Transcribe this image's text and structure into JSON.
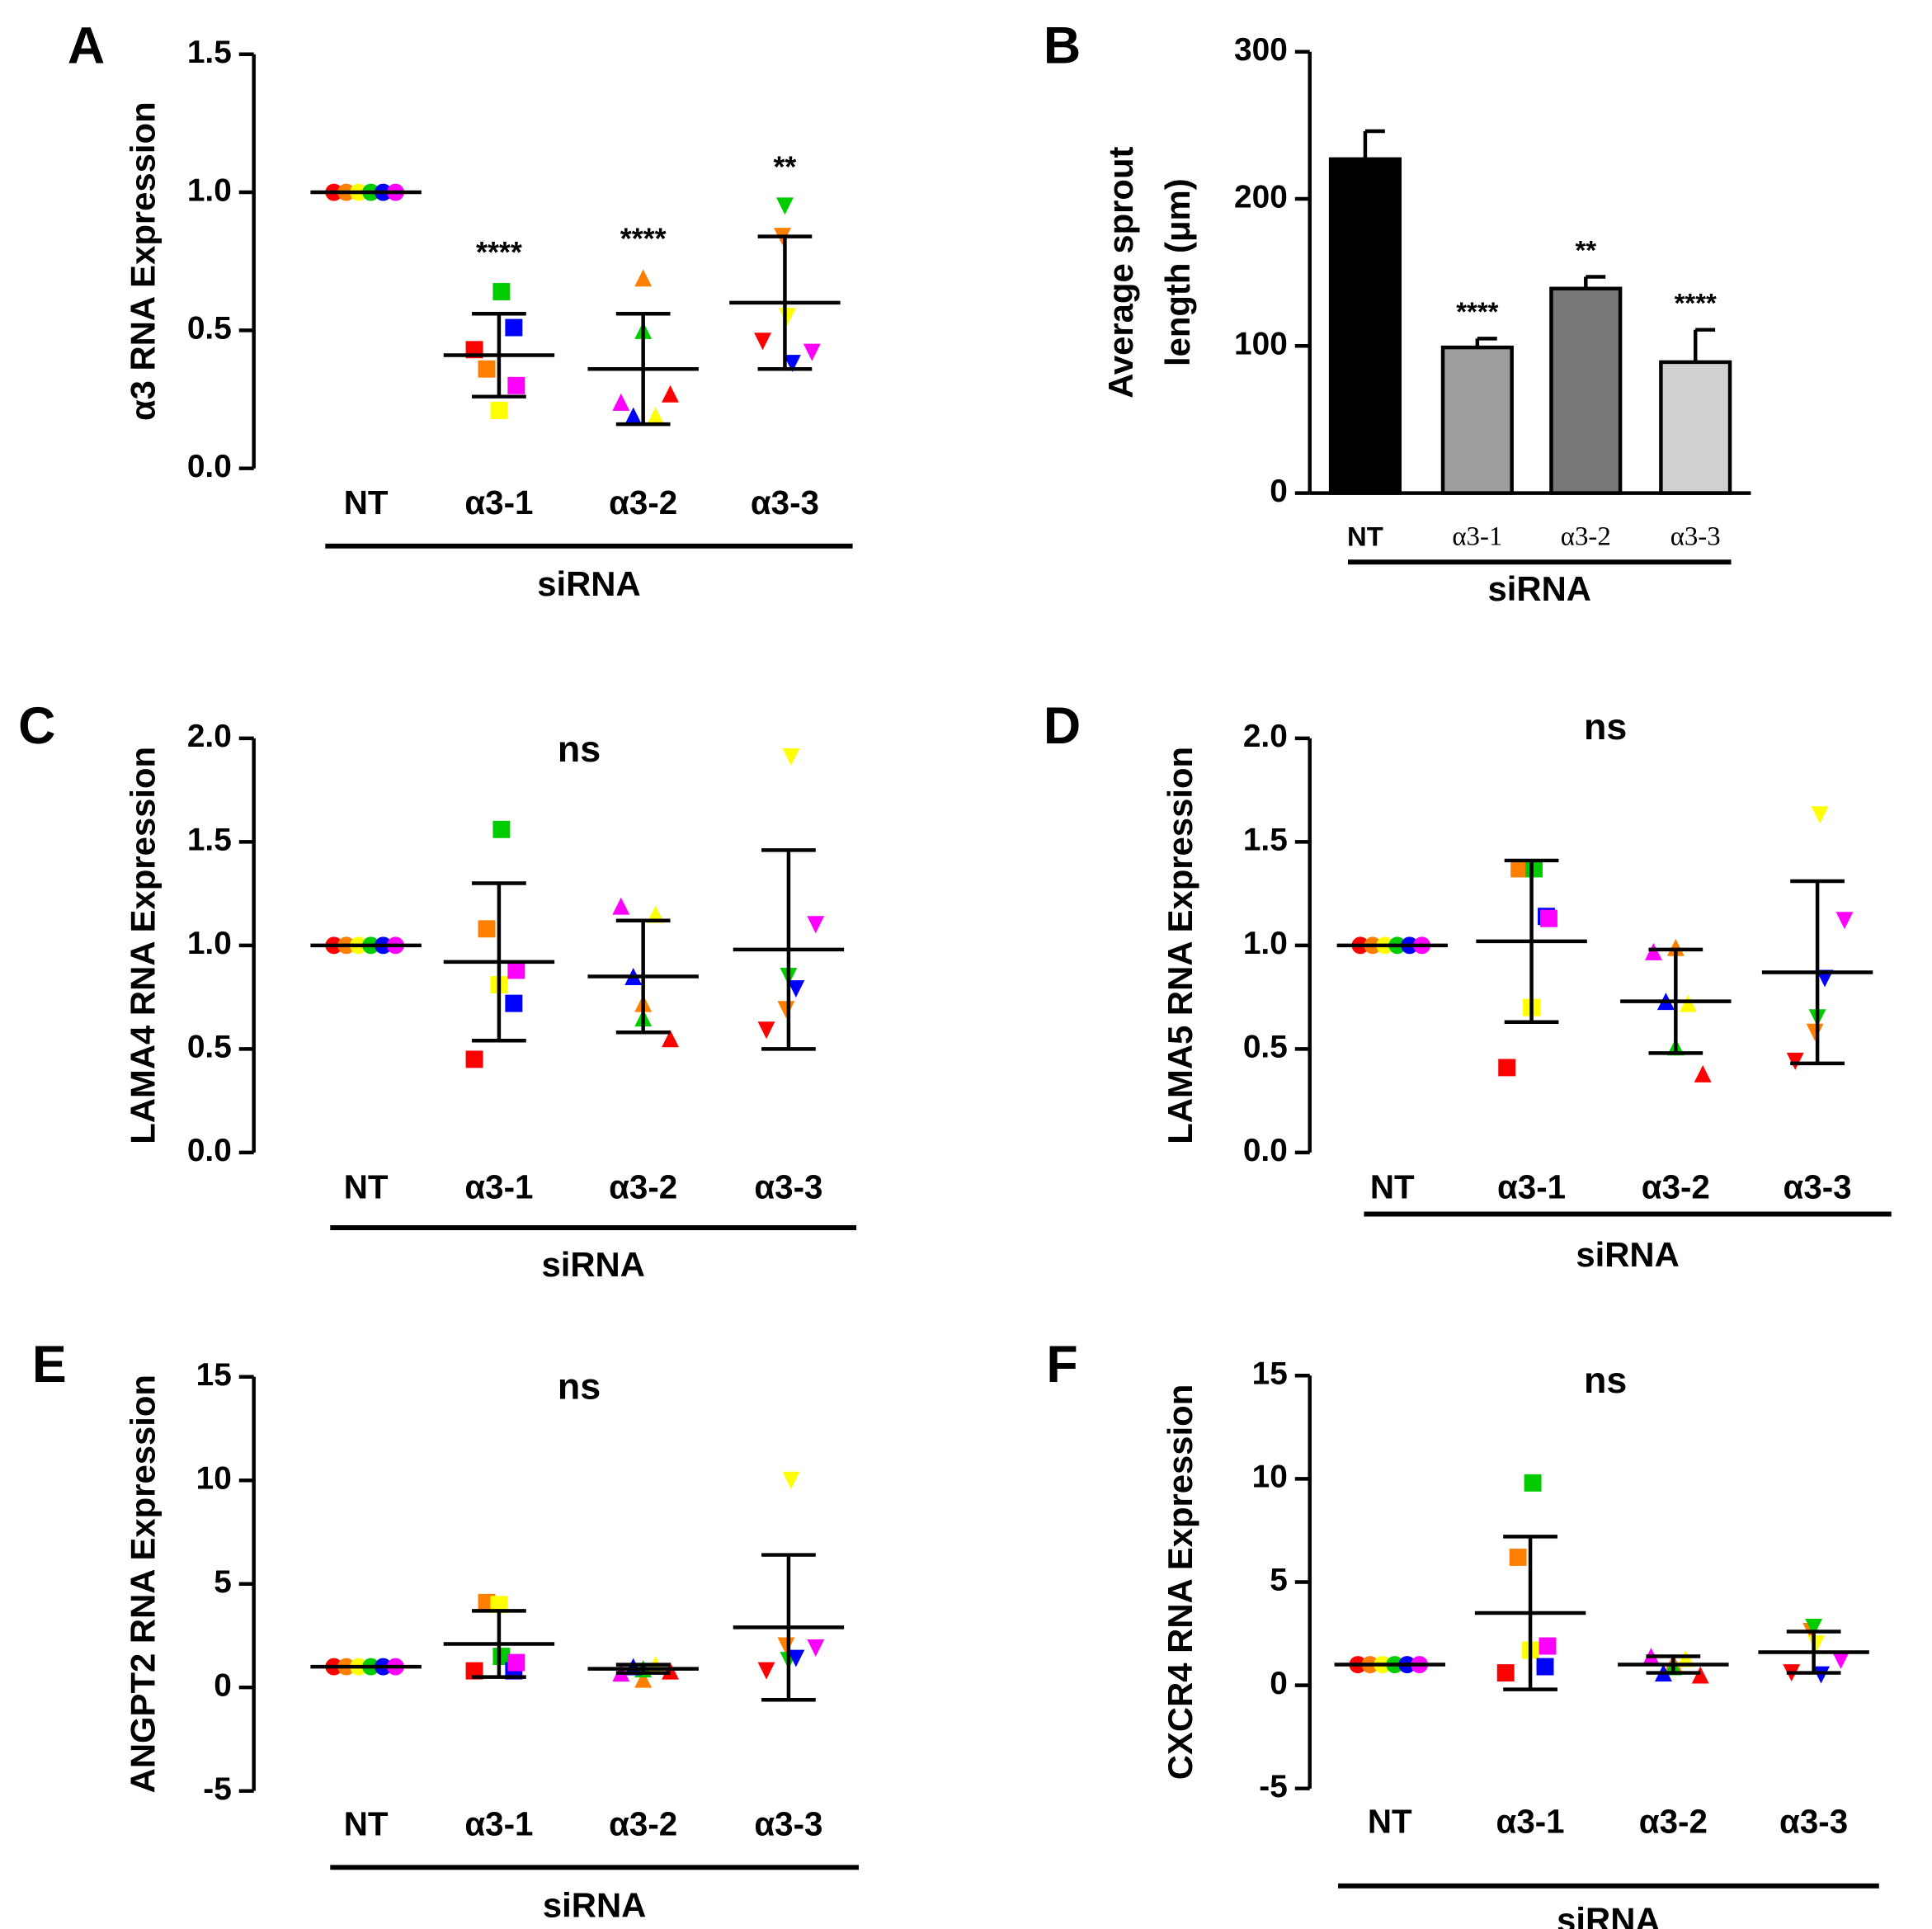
{
  "chart_data": [
    {
      "type": "dot",
      "panel": "A",
      "ylabel": [
        "α3 RNA Expression"
      ],
      "xlabel": "siRNA",
      "categories": [
        "NT",
        "α3-1",
        "α3-2",
        "α3-3"
      ],
      "markers": [
        "circle",
        "square",
        "triangle",
        "triangle-down"
      ],
      "ylim": [
        0,
        1.5
      ],
      "yticks": [
        {
          "value": 0,
          "label": "0.0"
        },
        0.5,
        {
          "value": 1,
          "label": "1.0"
        },
        1.5
      ],
      "annotations": [
        null,
        "****",
        "****",
        "**"
      ],
      "series": [
        {
          "color": "#ff0000",
          "values": [
            1,
            0.43,
            0.27,
            0.46
          ]
        },
        {
          "color": "#ff7f00",
          "values": [
            1,
            0.36,
            0.69,
            0.84
          ]
        },
        {
          "color": "#ffff00",
          "values": [
            1,
            0.21,
            0.19,
            0.55
          ]
        },
        {
          "color": "#00cc00",
          "values": [
            1,
            0.64,
            0.5,
            0.95
          ]
        },
        {
          "color": "#0000ff",
          "values": [
            1,
            0.51,
            0.19,
            0.38
          ]
        },
        {
          "color": "#ff00ff",
          "values": [
            1,
            0.3,
            0.24,
            0.42
          ]
        }
      ],
      "means": [
        1,
        0.41,
        0.36,
        0.6
      ],
      "errors": [
        0,
        0.15,
        0.2,
        0.24
      ]
    },
    {
      "type": "bar",
      "panel": "B",
      "ylabel": [
        "Average sprout",
        "length (μm)"
      ],
      "xlabel": "siRNA",
      "categories": [
        "NT",
        "α3-1",
        "α3-2",
        "α3-3"
      ],
      "colors": [
        "#000000",
        "#9e9e9e",
        "#777777",
        "#d0d0d0"
      ],
      "ylim": [
        0,
        300
      ],
      "yticks": [
        0,
        100,
        200,
        300
      ],
      "annotations": [
        null,
        "****",
        "**",
        "****"
      ],
      "values": [
        227,
        99,
        139,
        89
      ],
      "errors": [
        19,
        6,
        8,
        22
      ]
    },
    {
      "type": "dot",
      "panel": "C",
      "ylabel": [
        "LAMA4  RNA  Expression"
      ],
      "xlabel": "siRNA",
      "note": "ns",
      "categories": [
        "NT",
        "α3-1",
        "α3-2",
        "α3-3"
      ],
      "markers": [
        "circle",
        "square",
        "triangle",
        "triangle-down"
      ],
      "ylim": [
        0,
        2
      ],
      "yticks": [
        {
          "value": 0,
          "label": "0.0"
        },
        0.5,
        {
          "value": 1,
          "label": "1.0"
        },
        1.5,
        {
          "value": 2,
          "label": "2.0"
        }
      ],
      "series": [
        {
          "color": "#ff0000",
          "values": [
            1,
            0.45,
            0.55,
            0.59
          ]
        },
        {
          "color": "#ff7f00",
          "values": [
            1,
            1.08,
            0.72,
            0.69
          ]
        },
        {
          "color": "#ffff00",
          "values": [
            1,
            0.81,
            1.15,
            1.91
          ]
        },
        {
          "color": "#00cc00",
          "values": [
            1,
            1.56,
            0.65,
            0.85
          ]
        },
        {
          "color": "#0000ff",
          "values": [
            1,
            0.72,
            0.85,
            0.79
          ]
        },
        {
          "color": "#ff00ff",
          "values": [
            1,
            0.88,
            1.19,
            1.1
          ]
        }
      ],
      "means": [
        1,
        0.92,
        0.85,
        0.98
      ],
      "errors": [
        0,
        0.38,
        0.27,
        0.48
      ]
    },
    {
      "type": "dot",
      "panel": "D",
      "ylabel": [
        "LAMA5 RNA Expression"
      ],
      "xlabel": "siRNA",
      "note": "ns",
      "categories": [
        "NT",
        "α3-1",
        "α3-2",
        "α3-3"
      ],
      "markers": [
        "circle",
        "square",
        "triangle",
        "triangle-down"
      ],
      "ylim": [
        0,
        2
      ],
      "yticks": [
        {
          "value": 0,
          "label": "0.0"
        },
        0.5,
        {
          "value": 1,
          "label": "1.0"
        },
        1.5,
        {
          "value": 2,
          "label": "2.0"
        }
      ],
      "series": [
        {
          "color": "#ff0000",
          "values": [
            1,
            0.41,
            0.38,
            0.44
          ]
        },
        {
          "color": "#ff7f00",
          "values": [
            1,
            1.37,
            0.99,
            0.58
          ]
        },
        {
          "color": "#ffff00",
          "values": [
            1,
            0.7,
            0.72,
            1.63
          ]
        },
        {
          "color": "#00cc00",
          "values": [
            1,
            1.37,
            0.51,
            0.65
          ]
        },
        {
          "color": "#0000ff",
          "values": [
            1,
            1.14,
            0.73,
            0.84
          ]
        },
        {
          "color": "#ff00ff",
          "values": [
            1,
            1.13,
            0.97,
            1.12
          ]
        }
      ],
      "means": [
        1,
        1.02,
        0.73,
        0.87
      ],
      "errors": [
        0,
        0.39,
        0.25,
        0.44
      ]
    },
    {
      "type": "dot",
      "panel": "E",
      "ylabel": [
        "ANGPT2  RNA Expression"
      ],
      "xlabel": "siRNA",
      "note": "ns",
      "categories": [
        "NT",
        "α3-1",
        "α3-2",
        "α3-3"
      ],
      "markers": [
        "circle",
        "square",
        "triangle",
        "triangle-down"
      ],
      "ylim": [
        -5,
        15
      ],
      "yticks": [
        -5,
        0,
        5,
        10,
        15
      ],
      "series": [
        {
          "color": "#ff0000",
          "values": [
            1,
            0.8,
            0.8,
            0.8
          ]
        },
        {
          "color": "#ff7f00",
          "values": [
            1,
            4.1,
            0.4,
            2.0
          ]
        },
        {
          "color": "#ffff00",
          "values": [
            1,
            4.0,
            1.1,
            10.0
          ]
        },
        {
          "color": "#00cc00",
          "values": [
            1,
            1.5,
            0.9,
            1.3
          ]
        },
        {
          "color": "#0000ff",
          "values": [
            1,
            0.8,
            1.0,
            1.4
          ]
        },
        {
          "color": "#ff00ff",
          "values": [
            1,
            1.2,
            0.7,
            1.9
          ]
        }
      ],
      "means": [
        1,
        2.1,
        0.9,
        2.9
      ],
      "errors": [
        0,
        1.6,
        0.2,
        3.5
      ]
    },
    {
      "type": "dot",
      "panel": "F",
      "ylabel": [
        "CXCR4 RNA Expression"
      ],
      "xlabel": "siRNA",
      "note": "ns",
      "categories": [
        "NT",
        "α3-1",
        "α3-2",
        "α3-3"
      ],
      "markers": [
        "circle",
        "square",
        "triangle",
        "triangle-down"
      ],
      "ylim": [
        -5,
        15
      ],
      "yticks": [
        -5,
        0,
        5,
        10,
        15
      ],
      "series": [
        {
          "color": "#ff0000",
          "values": [
            1,
            0.6,
            0.5,
            0.6
          ]
        },
        {
          "color": "#ff7f00",
          "values": [
            1,
            6.2,
            1.1,
            2.6
          ]
        },
        {
          "color": "#ffff00",
          "values": [
            1,
            1.7,
            1.3,
            2.0
          ]
        },
        {
          "color": "#00cc00",
          "values": [
            1,
            9.8,
            0.9,
            2.8
          ]
        },
        {
          "color": "#0000ff",
          "values": [
            1,
            0.9,
            0.6,
            0.5
          ]
        },
        {
          "color": "#ff00ff",
          "values": [
            1,
            1.9,
            1.4,
            1.2
          ]
        }
      ],
      "means": [
        1,
        3.5,
        1.0,
        1.6
      ],
      "errors": [
        0,
        3.7,
        0.4,
        1.0
      ]
    }
  ]
}
